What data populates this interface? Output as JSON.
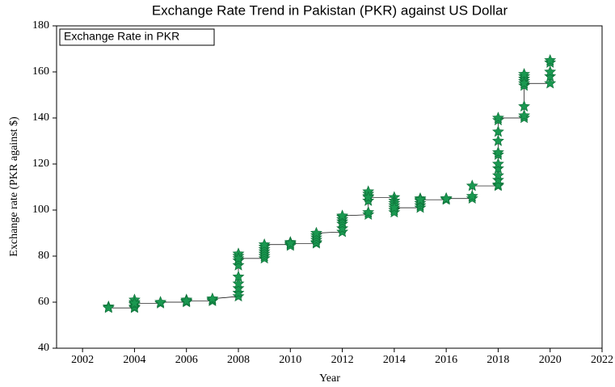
{
  "chart_data": {
    "type": "scatter",
    "title": "Exchange Rate Trend in Pakistan (PKR) against US Dollar",
    "xlabel": "Year",
    "ylabel": "Exchange rate (PKR against $)",
    "xlim": [
      2001,
      2022
    ],
    "ylim": [
      40,
      180
    ],
    "xticks": [
      2002,
      2004,
      2006,
      2008,
      2010,
      2012,
      2014,
      2016,
      2018,
      2020,
      2022
    ],
    "yticks": [
      40,
      60,
      80,
      100,
      120,
      140,
      160,
      180
    ],
    "legend": "upper left",
    "line_color": "#000000",
    "series": [
      {
        "name": "Exchange Rate in PKR",
        "color": "#1a9850",
        "x": [
          2003,
          2003,
          2004,
          2004,
          2004,
          2004,
          2004,
          2004,
          2005,
          2005,
          2006,
          2006,
          2006,
          2006,
          2007,
          2007,
          2007,
          2008,
          2008,
          2008,
          2008,
          2008,
          2008,
          2008,
          2008,
          2008,
          2008,
          2009,
          2009,
          2009,
          2009,
          2009,
          2009,
          2009,
          2010,
          2010,
          2010,
          2010,
          2010,
          2011,
          2011,
          2011,
          2011,
          2011,
          2011,
          2012,
          2012,
          2012,
          2012,
          2012,
          2012,
          2012,
          2013,
          2013,
          2013,
          2013,
          2013,
          2013,
          2013,
          2014,
          2014,
          2014,
          2014,
          2014,
          2014,
          2014,
          2015,
          2015,
          2015,
          2015,
          2015,
          2015,
          2016,
          2016,
          2016,
          2017,
          2017,
          2017,
          2018,
          2018,
          2018,
          2018,
          2018,
          2018,
          2018,
          2018,
          2018,
          2018,
          2018,
          2018,
          2019,
          2019,
          2019,
          2019,
          2019,
          2019,
          2019,
          2019,
          2019,
          2020,
          2020,
          2020,
          2020,
          2020
        ],
        "values": [
          58,
          57.5,
          57.5,
          58,
          59,
          60,
          61,
          59.5,
          59.5,
          60,
          60,
          60.5,
          61,
          60.5,
          60.5,
          61,
          61.5,
          62.5,
          64,
          66,
          68,
          71,
          76,
          78,
          80,
          81,
          79,
          79,
          80,
          81,
          82,
          83,
          84,
          85,
          85,
          84.5,
          85.5,
          86,
          85.5,
          85.5,
          86,
          87,
          88,
          89,
          90,
          90.5,
          92,
          94,
          95,
          96,
          97,
          97.5,
          98,
          99,
          104,
          106,
          107,
          108,
          105.5,
          105.5,
          104,
          103,
          102,
          100,
          99,
          101,
          101,
          102,
          103,
          104,
          105,
          104.5,
          104.5,
          105,
          105,
          105,
          106,
          110.5,
          110.5,
          111,
          113,
          115,
          118,
          120,
          124,
          125,
          130,
          134,
          139,
          140,
          140,
          141,
          145,
          154,
          156,
          157,
          158,
          159,
          155,
          155,
          158,
          160,
          164,
          165
        ]
      }
    ]
  }
}
